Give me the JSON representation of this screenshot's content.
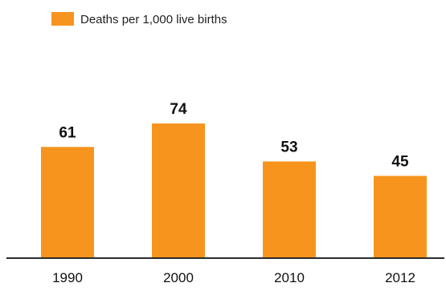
{
  "chart_data": {
    "type": "bar",
    "categories": [
      "1990",
      "2000",
      "2010",
      "2012"
    ],
    "series": [
      {
        "name": "Deaths per 1,000 live births",
        "values": [
          61,
          74,
          53,
          45
        ]
      }
    ],
    "data_labels": [
      "61",
      "74",
      "53",
      "45"
    ],
    "ylim": [
      0,
      100
    ],
    "grid": false,
    "legend_position": "top-left",
    "colors": {
      "bar": "#F7941D",
      "axis": "#2b2b2b",
      "text": "#111111"
    }
  }
}
